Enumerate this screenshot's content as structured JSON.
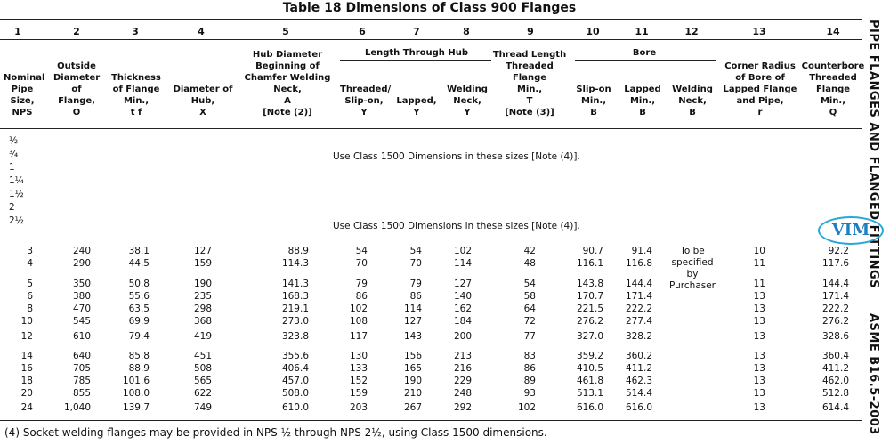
{
  "title": "Table 18   Dimensions of Class 900 Flanges",
  "side_text_top": "PIPE FLANGES AND FLANGED FITTINGS",
  "side_text_bottom": "ASME B16.5-2003",
  "watermark": "VIM",
  "column_numbers": [
    "1",
    "2",
    "3",
    "4",
    "5",
    "6",
    "7",
    "8",
    "9",
    "10",
    "11",
    "12",
    "13",
    "14"
  ],
  "group_headers": {
    "length_through_hub": "Length Through Hub",
    "bore": "Bore"
  },
  "headers": {
    "c1": "Nominal\nPipe\nSize,\nNPS",
    "c2": "Outside\nDiameter\nof\nFlange,\nO",
    "c3": "Thickness\nof Flange\nMin.,\nt f",
    "c4": "Diameter of\nHub,\nX",
    "c5": "Hub Diameter\nBeginning of\nChamfer Welding\nNeck,\nA\n[Note (2)]",
    "c6": "Threaded/\nSlip-on,\nY",
    "c7": "Lapped,\nY",
    "c8": "Welding\nNeck,\nY",
    "c9": "Thread Length\nThreaded\nFlange\nMin.,\nT\n[Note (3)]",
    "c10": "Slip-on\nMin.,\nB",
    "c11": "Lapped\nMin.,\nB",
    "c12": "Welding\nNeck,\nB",
    "c13": "Corner Radius\nof Bore of\nLapped Flange\nand Pipe,\nr",
    "c14": "Counterbore\nThreaded\nFlange\nMin.,\nQ"
  },
  "small_sizes": [
    "½",
    "¾",
    "1",
    "1¼",
    "1½",
    "2",
    "2½"
  ],
  "small_sizes_note": "Use Class 1500 Dimensions in these sizes [Note (4)].",
  "purchaser_note": "To be\nspecified\nby\nPurchaser",
  "rows": [
    [
      "3",
      "240",
      "38.1",
      "127",
      "88.9",
      "54",
      "54",
      "102",
      "42",
      "90.7",
      "91.4",
      "10",
      "92.2"
    ],
    [
      "4",
      "290",
      "44.5",
      "159",
      "114.3",
      "70",
      "70",
      "114",
      "48",
      "116.1",
      "116.8",
      "11",
      "117.6"
    ],
    [
      "5",
      "350",
      "50.8",
      "190",
      "141.3",
      "79",
      "79",
      "127",
      "54",
      "143.8",
      "144.4",
      "11",
      "144.4"
    ],
    [
      "6",
      "380",
      "55.6",
      "235",
      "168.3",
      "86",
      "86",
      "140",
      "58",
      "170.7",
      "171.4",
      "13",
      "171.4"
    ],
    [
      "8",
      "470",
      "63.5",
      "298",
      "219.1",
      "102",
      "114",
      "162",
      "64",
      "221.5",
      "222.2",
      "13",
      "222.2"
    ],
    [
      "10",
      "545",
      "69.9",
      "368",
      "273.0",
      "108",
      "127",
      "184",
      "72",
      "276.2",
      "277.4",
      "13",
      "276.2"
    ],
    [
      "12",
      "610",
      "79.4",
      "419",
      "323.8",
      "117",
      "143",
      "200",
      "77",
      "327.0",
      "328.2",
      "13",
      "328.6"
    ],
    [
      "14",
      "640",
      "85.8",
      "451",
      "355.6",
      "130",
      "156",
      "213",
      "83",
      "359.2",
      "360.2",
      "13",
      "360.4"
    ],
    [
      "16",
      "705",
      "88.9",
      "508",
      "406.4",
      "133",
      "165",
      "216",
      "86",
      "410.5",
      "411.2",
      "13",
      "411.2"
    ],
    [
      "18",
      "785",
      "101.6",
      "565",
      "457.0",
      "152",
      "190",
      "229",
      "89",
      "461.8",
      "462.3",
      "13",
      "462.0"
    ],
    [
      "20",
      "855",
      "108.0",
      "622",
      "508.0",
      "159",
      "210",
      "248",
      "93",
      "513.1",
      "514.4",
      "13",
      "512.8"
    ],
    [
      "24",
      "1,040",
      "139.7",
      "749",
      "610.0",
      "203",
      "267",
      "292",
      "102",
      "616.0",
      "616.0",
      "13",
      "614.4"
    ]
  ],
  "footnote": "(4)  Socket welding flanges may be provided in NPS ½ through NPS 2½, using Class 1500 dimensions."
}
